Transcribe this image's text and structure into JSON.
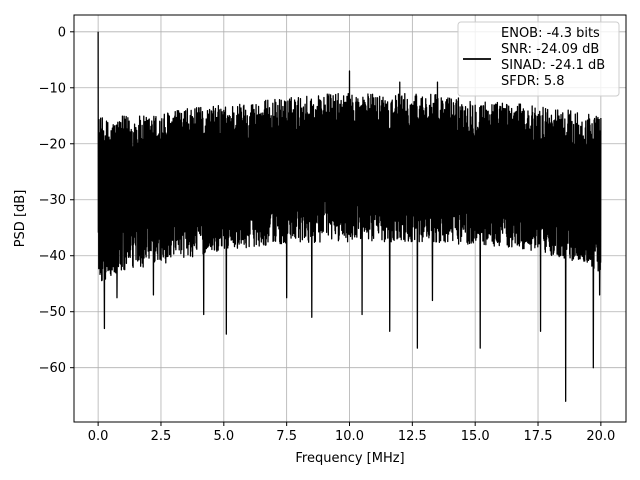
{
  "chart_data": {
    "type": "line",
    "xlabel": "Frequency [MHz]",
    "ylabel": "PSD [dB]",
    "xlim": [
      -0.96,
      21.0
    ],
    "ylim": [
      -69.7,
      3.0
    ],
    "xticks": [
      0.0,
      2.5,
      5.0,
      7.5,
      10.0,
      12.5,
      15.0,
      17.5,
      20.0
    ],
    "xtick_labels": [
      "0.0",
      "2.5",
      "5.0",
      "7.5",
      "10.0",
      "12.5",
      "15.0",
      "17.5",
      "20.0"
    ],
    "yticks": [
      0,
      -10,
      -20,
      -30,
      -40,
      -50,
      -60
    ],
    "ytick_labels": [
      "0",
      "−10",
      "−20",
      "−30",
      "−40",
      "−50",
      "−60"
    ],
    "grid": true,
    "legend_position": "top-right",
    "series": [
      {
        "color": "#000000",
        "legend_lines": [
          "ENOB: -4.3 bits",
          "SNR: -24.09 dB",
          "SINAD: -24.1 dB",
          "SFDR: 5.8"
        ],
        "envelope": {
          "x": [
            0.0,
            0.5,
            1.0,
            2.0,
            3.0,
            4.0,
            5.0,
            6.0,
            7.0,
            8.0,
            9.0,
            10.0,
            11.0,
            12.0,
            13.0,
            14.0,
            15.0,
            16.0,
            17.0,
            18.0,
            19.0,
            20.0
          ],
          "upper": [
            -15,
            -16,
            -15,
            -15,
            -14,
            -13.5,
            -13,
            -12.5,
            -12,
            -11.5,
            -11,
            -11,
            -11,
            -11,
            -11,
            -11.5,
            -12,
            -12.5,
            -13,
            -13.5,
            -14,
            -15
          ],
          "lower": [
            -45,
            -44,
            -43,
            -42,
            -41,
            -40,
            -39,
            -38.5,
            -38,
            -38,
            -37.5,
            -37.5,
            -37.5,
            -37.5,
            -37.5,
            -38,
            -38,
            -38.5,
            -39,
            -40,
            -41,
            -43
          ]
        },
        "peaks": [
          {
            "x": 0.0,
            "y": 0.0
          },
          {
            "x": 7.5,
            "y": -8.0
          },
          {
            "x": 10.0,
            "y": -7.0
          },
          {
            "x": 12.0,
            "y": -9.0
          },
          {
            "x": 13.5,
            "y": -9.0
          }
        ],
        "dips": [
          {
            "x": 0.25,
            "y": -53.0
          },
          {
            "x": 0.75,
            "y": -47.5
          },
          {
            "x": 2.2,
            "y": -47.0
          },
          {
            "x": 4.2,
            "y": -50.5
          },
          {
            "x": 5.1,
            "y": -54.0
          },
          {
            "x": 7.5,
            "y": -47.5
          },
          {
            "x": 8.5,
            "y": -51.0
          },
          {
            "x": 10.5,
            "y": -50.5
          },
          {
            "x": 11.6,
            "y": -53.5
          },
          {
            "x": 12.7,
            "y": -56.5
          },
          {
            "x": 13.3,
            "y": -48.0
          },
          {
            "x": 15.2,
            "y": -56.5
          },
          {
            "x": 17.6,
            "y": -53.5
          },
          {
            "x": 18.6,
            "y": -66.0
          },
          {
            "x": 19.7,
            "y": -60.0
          },
          {
            "x": 19.95,
            "y": -47.0
          }
        ]
      }
    ]
  }
}
